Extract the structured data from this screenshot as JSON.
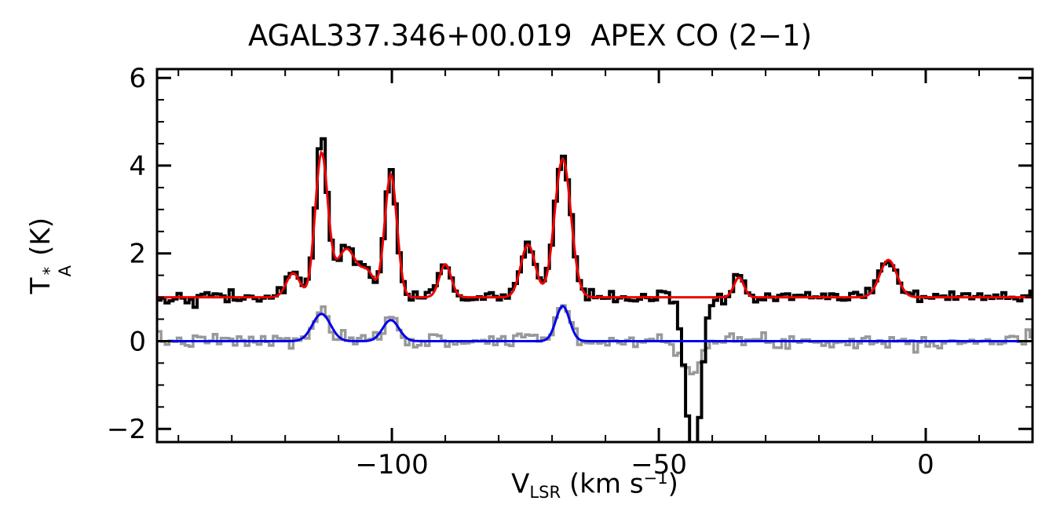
{
  "title": "AGAL337.346+00.019  APEX CO (2−1)",
  "axis": {
    "x_label": {
      "base": "V",
      "sub": "LSR",
      "mid": " (km s",
      "sup": "−1",
      "end": ")"
    },
    "y_label": {
      "base": "T",
      "sup": "*",
      "sub": "A",
      "end": " (K)"
    }
  },
  "chart_data": {
    "type": "line",
    "title": "AGAL337.346+00.019  APEX CO (2−1)",
    "xlabel": "V_LSR (km s^−1)",
    "ylabel": "T*_A (K)",
    "xlim": [
      -144,
      20
    ],
    "ylim": [
      -2.3,
      6.2
    ],
    "xticks": [
      -100,
      -50,
      0
    ],
    "x_minor_step": 10,
    "yticks": [
      -2,
      0,
      2,
      4,
      6
    ],
    "y_minor_step": 0.5,
    "grid": false,
    "legend": "none",
    "frame_color": "#000000",
    "series": [
      {
        "name": "secondary-spectrum-gray",
        "color": "#999999",
        "style": "histogram",
        "line_width": 3.5,
        "baseline": 0.0,
        "noise_rms": 0.08,
        "seed": 7,
        "components": [
          {
            "center": -113.2,
            "amp": 0.75,
            "fwhm": 3.0
          },
          {
            "center": -100.2,
            "amp": 0.55,
            "fwhm": 3.0
          },
          {
            "center": -74.5,
            "amp": 0.18,
            "fwhm": 3.0
          },
          {
            "center": -68.0,
            "amp": 0.85,
            "fwhm": 3.0
          },
          {
            "center": -44.0,
            "amp": -0.62,
            "fwhm": 4.0
          }
        ]
      },
      {
        "name": "co21-spectrum-black",
        "color": "#000000",
        "style": "histogram",
        "line_width": 4,
        "baseline": 1.0,
        "noise_rms": 0.07,
        "seed": 42,
        "components": [
          {
            "center": -118.5,
            "amp": 0.6,
            "fwhm": 3.0
          },
          {
            "center": -113.2,
            "amp": 3.7,
            "fwhm": 2.6
          },
          {
            "center": -108.5,
            "amp": 1.15,
            "fwhm": 4.5
          },
          {
            "center": -104.5,
            "amp": 0.55,
            "fwhm": 3.0
          },
          {
            "center": -100.2,
            "amp": 2.85,
            "fwhm": 2.6
          },
          {
            "center": -90.0,
            "amp": 0.8,
            "fwhm": 2.6
          },
          {
            "center": -74.5,
            "amp": 1.25,
            "fwhm": 3.2
          },
          {
            "center": -68.0,
            "amp": 3.2,
            "fwhm": 3.6
          },
          {
            "center": -43.5,
            "amp": -3.9,
            "fwhm": 3.2
          },
          {
            "center": -35.0,
            "amp": 0.5,
            "fwhm": 2.2
          },
          {
            "center": -7.0,
            "amp": 0.9,
            "fwhm": 3.8
          }
        ]
      },
      {
        "name": "secondary-fit-blue",
        "color": "#0000ee",
        "style": "smooth",
        "line_width": 3,
        "baseline": 0.0,
        "noise_rms": 0,
        "seed": 0,
        "components": [
          {
            "center": -113.2,
            "amp": 0.62,
            "fwhm": 4.0
          },
          {
            "center": -100.2,
            "amp": 0.48,
            "fwhm": 3.6
          },
          {
            "center": -68.0,
            "amp": 0.8,
            "fwhm": 3.0
          }
        ]
      },
      {
        "name": "co21-fit-red",
        "color": "#ee0000",
        "style": "smooth",
        "line_width": 3,
        "baseline": 1.0,
        "noise_rms": 0,
        "seed": 0,
        "components": [
          {
            "center": -118.5,
            "amp": 0.55,
            "fwhm": 3.0
          },
          {
            "center": -113.2,
            "amp": 3.25,
            "fwhm": 2.8
          },
          {
            "center": -108.5,
            "amp": 1.1,
            "fwhm": 4.5
          },
          {
            "center": -104.5,
            "amp": 0.5,
            "fwhm": 3.0
          },
          {
            "center": -100.2,
            "amp": 2.8,
            "fwhm": 2.7
          },
          {
            "center": -90.0,
            "amp": 0.75,
            "fwhm": 2.6
          },
          {
            "center": -74.5,
            "amp": 1.2,
            "fwhm": 3.2
          },
          {
            "center": -68.0,
            "amp": 3.15,
            "fwhm": 3.6
          },
          {
            "center": -35.0,
            "amp": 0.45,
            "fwhm": 2.2
          },
          {
            "center": -7.0,
            "amp": 0.85,
            "fwhm": 3.8
          }
        ]
      }
    ]
  }
}
